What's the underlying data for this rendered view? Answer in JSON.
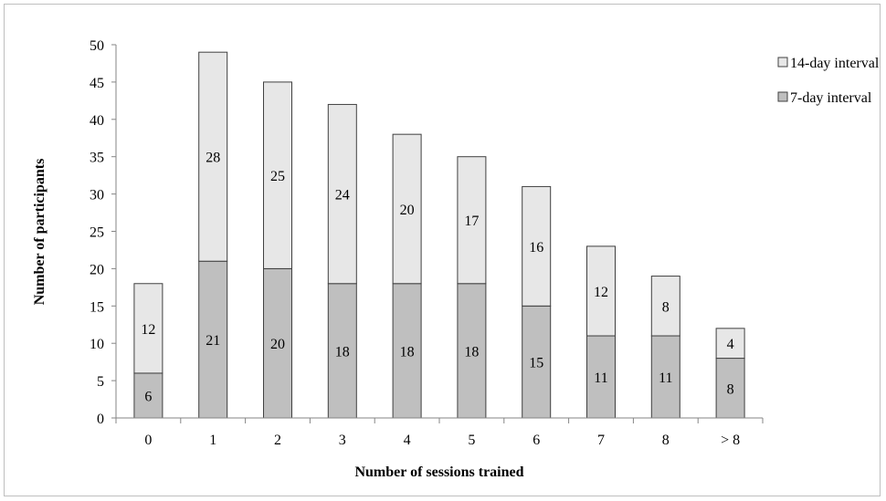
{
  "chart_data": {
    "type": "bar",
    "stacked": true,
    "categories": [
      "0",
      "1",
      "2",
      "3",
      "4",
      "5",
      "6",
      "7",
      "8",
      "> 8"
    ],
    "series": [
      {
        "name": "7-day interval",
        "values": [
          6,
          21,
          20,
          18,
          18,
          18,
          15,
          11,
          11,
          8
        ],
        "color": "#bfbfbf"
      },
      {
        "name": "14-day interval",
        "values": [
          12,
          28,
          25,
          24,
          20,
          17,
          16,
          12,
          8,
          4
        ],
        "color": "#e7e7e7"
      }
    ],
    "xlabel": "Number of sessions trained",
    "ylabel": "Number of participants",
    "ylim": [
      0,
      50
    ],
    "yticks": [
      0,
      5,
      10,
      15,
      20,
      25,
      30,
      35,
      40,
      45,
      50
    ],
    "grid": false,
    "legend_position": "top-right",
    "bar_edge_color": "#404040"
  }
}
